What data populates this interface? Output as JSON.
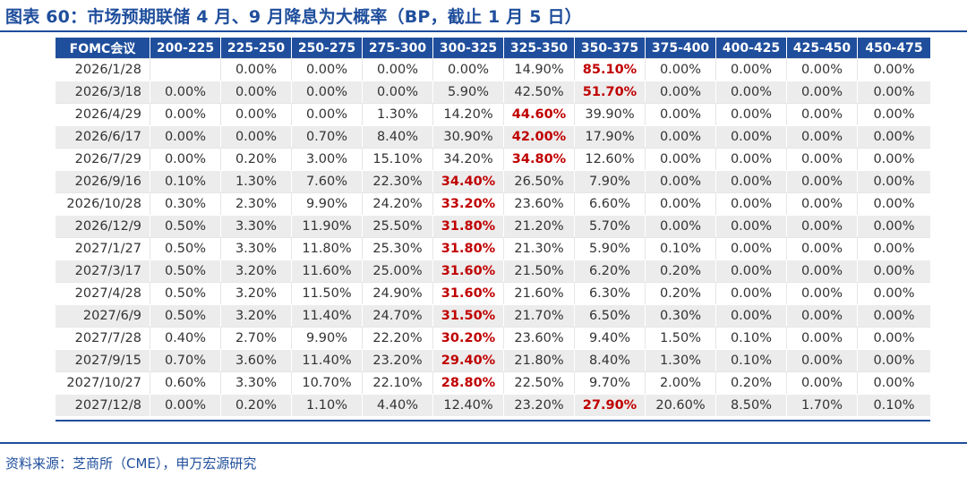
{
  "title": "图表 60：市场预期联储 4 月、9 月降息为大概率（BP，截止 1 月 5 日）",
  "source": "资料来源：芝商所（CME），申万宏源研究",
  "colors": {
    "accent": "#1f4e9c",
    "highlight": "#c00000",
    "stripe": "#ececec"
  },
  "table": {
    "headers": [
      "FOMC会议",
      "200-225",
      "225-250",
      "250-275",
      "275-300",
      "300-325",
      "325-350",
      "350-375",
      "375-400",
      "400-425",
      "425-450",
      "450-475"
    ],
    "rows": [
      {
        "date": "2026/1/28",
        "values": [
          "",
          "0.00%",
          "0.00%",
          "0.00%",
          "0.00%",
          "14.90%",
          "85.10%",
          "0.00%",
          "0.00%",
          "0.00%",
          "0.00%"
        ],
        "max_index": 6
      },
      {
        "date": "2026/3/18",
        "values": [
          "0.00%",
          "0.00%",
          "0.00%",
          "0.00%",
          "5.90%",
          "42.50%",
          "51.70%",
          "0.00%",
          "0.00%",
          "0.00%",
          "0.00%"
        ],
        "max_index": 6
      },
      {
        "date": "2026/4/29",
        "values": [
          "0.00%",
          "0.00%",
          "0.00%",
          "1.30%",
          "14.20%",
          "44.60%",
          "39.90%",
          "0.00%",
          "0.00%",
          "0.00%",
          "0.00%"
        ],
        "max_index": 5
      },
      {
        "date": "2026/6/17",
        "values": [
          "0.00%",
          "0.00%",
          "0.70%",
          "8.40%",
          "30.90%",
          "42.00%",
          "17.90%",
          "0.00%",
          "0.00%",
          "0.00%",
          "0.00%"
        ],
        "max_index": 5
      },
      {
        "date": "2026/7/29",
        "values": [
          "0.00%",
          "0.20%",
          "3.00%",
          "15.10%",
          "34.20%",
          "34.80%",
          "12.60%",
          "0.00%",
          "0.00%",
          "0.00%",
          "0.00%"
        ],
        "max_index": 5
      },
      {
        "date": "2026/9/16",
        "values": [
          "0.10%",
          "1.30%",
          "7.60%",
          "22.30%",
          "34.40%",
          "26.50%",
          "7.90%",
          "0.00%",
          "0.00%",
          "0.00%",
          "0.00%"
        ],
        "max_index": 4
      },
      {
        "date": "2026/10/28",
        "values": [
          "0.30%",
          "2.30%",
          "9.90%",
          "24.20%",
          "33.20%",
          "23.60%",
          "6.60%",
          "0.00%",
          "0.00%",
          "0.00%",
          "0.00%"
        ],
        "max_index": 4
      },
      {
        "date": "2026/12/9",
        "values": [
          "0.50%",
          "3.30%",
          "11.90%",
          "25.50%",
          "31.80%",
          "21.20%",
          "5.70%",
          "0.00%",
          "0.00%",
          "0.00%",
          "0.00%"
        ],
        "max_index": 4
      },
      {
        "date": "2027/1/27",
        "values": [
          "0.50%",
          "3.30%",
          "11.80%",
          "25.30%",
          "31.80%",
          "21.30%",
          "5.90%",
          "0.10%",
          "0.00%",
          "0.00%",
          "0.00%"
        ],
        "max_index": 4
      },
      {
        "date": "2027/3/17",
        "values": [
          "0.50%",
          "3.20%",
          "11.60%",
          "25.00%",
          "31.60%",
          "21.50%",
          "6.20%",
          "0.20%",
          "0.00%",
          "0.00%",
          "0.00%"
        ],
        "max_index": 4
      },
      {
        "date": "2027/4/28",
        "values": [
          "0.50%",
          "3.20%",
          "11.50%",
          "24.90%",
          "31.60%",
          "21.60%",
          "6.30%",
          "0.20%",
          "0.00%",
          "0.00%",
          "0.00%"
        ],
        "max_index": 4
      },
      {
        "date": "2027/6/9",
        "values": [
          "0.50%",
          "3.20%",
          "11.40%",
          "24.70%",
          "31.50%",
          "21.70%",
          "6.50%",
          "0.30%",
          "0.00%",
          "0.00%",
          "0.00%"
        ],
        "max_index": 4
      },
      {
        "date": "2027/7/28",
        "values": [
          "0.40%",
          "2.70%",
          "9.90%",
          "22.20%",
          "30.20%",
          "23.60%",
          "9.40%",
          "1.50%",
          "0.10%",
          "0.00%",
          "0.00%"
        ],
        "max_index": 4
      },
      {
        "date": "2027/9/15",
        "values": [
          "0.70%",
          "3.60%",
          "11.40%",
          "23.20%",
          "29.40%",
          "21.80%",
          "8.40%",
          "1.30%",
          "0.10%",
          "0.00%",
          "0.00%"
        ],
        "max_index": 4
      },
      {
        "date": "2027/10/27",
        "values": [
          "0.60%",
          "3.30%",
          "10.70%",
          "22.10%",
          "28.80%",
          "22.50%",
          "9.70%",
          "2.00%",
          "0.20%",
          "0.00%",
          "0.00%"
        ],
        "max_index": 4
      },
      {
        "date": "2027/12/8",
        "values": [
          "0.00%",
          "0.20%",
          "1.10%",
          "4.40%",
          "12.40%",
          "23.20%",
          "27.90%",
          "20.60%",
          "8.50%",
          "1.70%",
          "0.10%"
        ],
        "max_index": 6
      }
    ]
  }
}
